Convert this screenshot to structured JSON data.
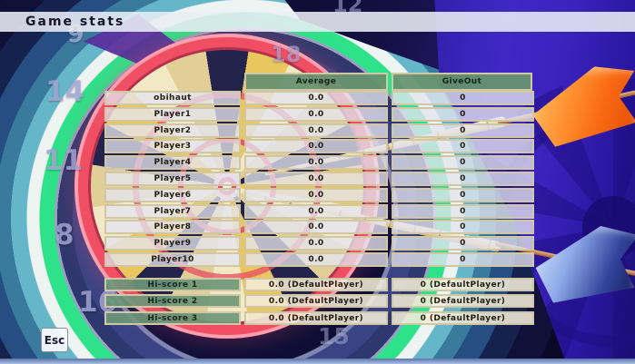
{
  "title_bar": {
    "title": "Game stats"
  },
  "esc_button": {
    "label": "Esc"
  },
  "stats_table": {
    "columns": {
      "average": "Average",
      "giveout": "GiveOut"
    },
    "players": [
      {
        "name": "obihaut",
        "average": "0.0",
        "giveout": "0"
      },
      {
        "name": "Player1",
        "average": "0.0",
        "giveout": "0"
      },
      {
        "name": "Player2",
        "average": "0.0",
        "giveout": "0"
      },
      {
        "name": "Player3",
        "average": "0.0",
        "giveout": "0"
      },
      {
        "name": "Player4",
        "average": "0.0",
        "giveout": "0"
      },
      {
        "name": "Player5",
        "average": "0.0",
        "giveout": "0"
      },
      {
        "name": "Player6",
        "average": "0.0",
        "giveout": "0"
      },
      {
        "name": "Player7",
        "average": "0.0",
        "giveout": "0"
      },
      {
        "name": "Player8",
        "average": "0.0",
        "giveout": "0"
      },
      {
        "name": "Player9",
        "average": "0.0",
        "giveout": "0"
      },
      {
        "name": "Player10",
        "average": "0.0",
        "giveout": "0"
      }
    ],
    "hiscores": [
      {
        "label": "Hi-score 1",
        "average": "0.0 (DefaultPlayer)",
        "giveout": "0 (DefaultPlayer)"
      },
      {
        "label": "Hi-score 2",
        "average": "0.0 (DefaultPlayer)",
        "giveout": "0 (DefaultPlayer)"
      },
      {
        "label": "Hi-score 3",
        "average": "0.0 (DefaultPlayer)",
        "giveout": "0 (DefaultPlayer)"
      }
    ]
  },
  "board_numbers": [
    "12",
    "9",
    "14",
    "11",
    "8",
    "16",
    "15",
    "18"
  ],
  "colors": {
    "header_green": "#67926f",
    "hiscore_green": "#6e9678",
    "border_tan": "#d0c8a4",
    "rim_red": "#f04f63",
    "arc_green": "#2ee28a",
    "arc_teal": "#66b6ca",
    "right_purple": "#4128c6",
    "flight_orange": "#f96a12",
    "flight_blue": "#33449c"
  }
}
